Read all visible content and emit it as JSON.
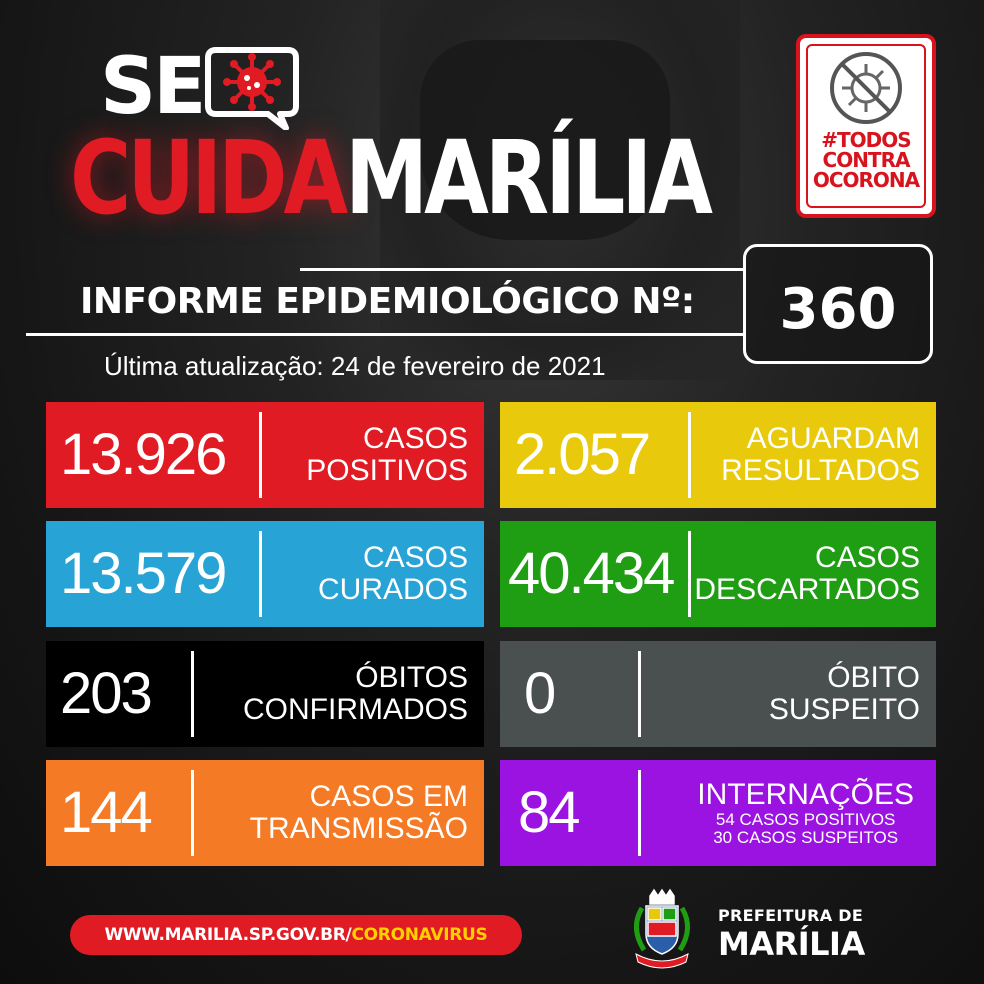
{
  "header": {
    "title_se": "SE",
    "title_cuida": "CUIDA",
    "title_marilia": "MARÍLIA",
    "campaign_badge": [
      "#TODOS",
      "CONTRA",
      "OCORONA"
    ]
  },
  "report": {
    "label": "INFORME EPIDEMIOLÓGICO Nº:",
    "number": "360",
    "updated": "Última atualização: 24 de fevereiro de 2021"
  },
  "colors": {
    "red": "#e01b24",
    "yellow": "#e8c90c",
    "blue": "#27a3d6",
    "green": "#1f9e14",
    "black": "#000000",
    "gray": "#4a4f50",
    "orange": "#f47a25",
    "purple": "#9b13e0"
  },
  "stats": {
    "positivos": {
      "value": "13.926",
      "label1": "CASOS",
      "label2": "POSITIVOS"
    },
    "aguardam": {
      "value": "2.057",
      "label1": "AGUARDAM",
      "label2": "RESULTADOS"
    },
    "curados": {
      "value": "13.579",
      "label1": "CASOS",
      "label2": "CURADOS"
    },
    "descartados": {
      "value": "40.434",
      "label1": "CASOS",
      "label2": "DESCARTADOS"
    },
    "obitos": {
      "value": "203",
      "label1": "ÓBITOS",
      "label2": "CONFIRMADOS"
    },
    "obito_suspeito": {
      "value": "0",
      "label1": "ÓBITO",
      "label2": "SUSPEITO"
    },
    "transmissao": {
      "value": "144",
      "label1": "CASOS EM",
      "label2": "TRANSMISSÃO"
    },
    "internacoes": {
      "value": "84",
      "label1": "INTERNAÇÕES",
      "sub1": "54 CASOS POSITIVOS",
      "sub2": "30 CASOS SUSPEITOS"
    }
  },
  "footer": {
    "url_main": "WWW.MARILIA.SP.GOV.BR/",
    "url_highlight": "CORONAVIRUS",
    "pref_line1": "PREFEITURA DE",
    "pref_line2": "MARÍLIA"
  },
  "icons": [
    "virus-icon",
    "crossed-virus-icon",
    "city-crest-icon"
  ]
}
